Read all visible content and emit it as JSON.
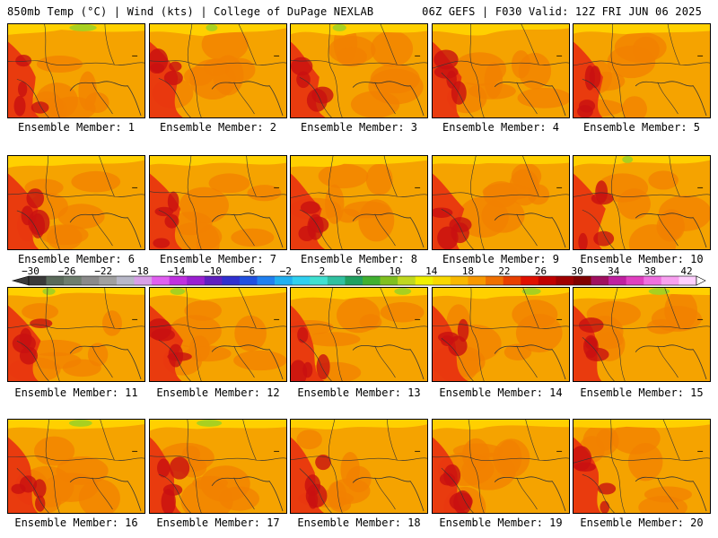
{
  "header": {
    "left": "850mb Temp (°C) | Wind (kts) | College of DuPage NEXLAB",
    "right": "06Z GEFS | F030 Valid: 12Z FRI JUN 06 2025"
  },
  "members": [
    "Ensemble Member: 1",
    "Ensemble Member: 2",
    "Ensemble Member: 3",
    "Ensemble Member: 4",
    "Ensemble Member: 5",
    "Ensemble Member: 6",
    "Ensemble Member: 7",
    "Ensemble Member: 8",
    "Ensemble Member: 9",
    "Ensemble Member: 10",
    "Ensemble Member: 11",
    "Ensemble Member: 12",
    "Ensemble Member: 13",
    "Ensemble Member: 14",
    "Ensemble Member: 15",
    "Ensemble Member: 16",
    "Ensemble Member: 17",
    "Ensemble Member: 18",
    "Ensemble Member: 19",
    "Ensemble Member: 20"
  ],
  "colorbar": {
    "labels": [
      "−30",
      "−26",
      "−22",
      "−18",
      "−14",
      "−10",
      "−6",
      "−2",
      "2",
      "6",
      "10",
      "14",
      "18",
      "22",
      "26",
      "30",
      "34",
      "38",
      "42"
    ],
    "colors": [
      "#3a3a3a",
      "#5a6a5a",
      "#6e7e6e",
      "#8a8a8a",
      "#a0a0a0",
      "#b8b8c8",
      "#d8a0e8",
      "#e060f0",
      "#c030e0",
      "#9a20d0",
      "#6020c0",
      "#3030d0",
      "#2050e0",
      "#2080f0",
      "#20b0f0",
      "#30d0f0",
      "#40e0d0",
      "#30c0a0",
      "#20a060",
      "#40b030",
      "#80c020",
      "#c0d820",
      "#f0f000",
      "#f8d800",
      "#f8b800",
      "#f89800",
      "#f07000",
      "#e84000",
      "#e01000",
      "#c00000",
      "#a00000",
      "#800000",
      "#a01060",
      "#c020a0",
      "#e040c0",
      "#f070e0",
      "#f8a0f0",
      "#ffd0ff"
    ]
  },
  "colors": {
    "warm": "#f5a300",
    "orange": "#f28000",
    "red": "#e83010",
    "darkred": "#c81010",
    "yellow": "#ffd000",
    "lime": "#a8d020"
  }
}
